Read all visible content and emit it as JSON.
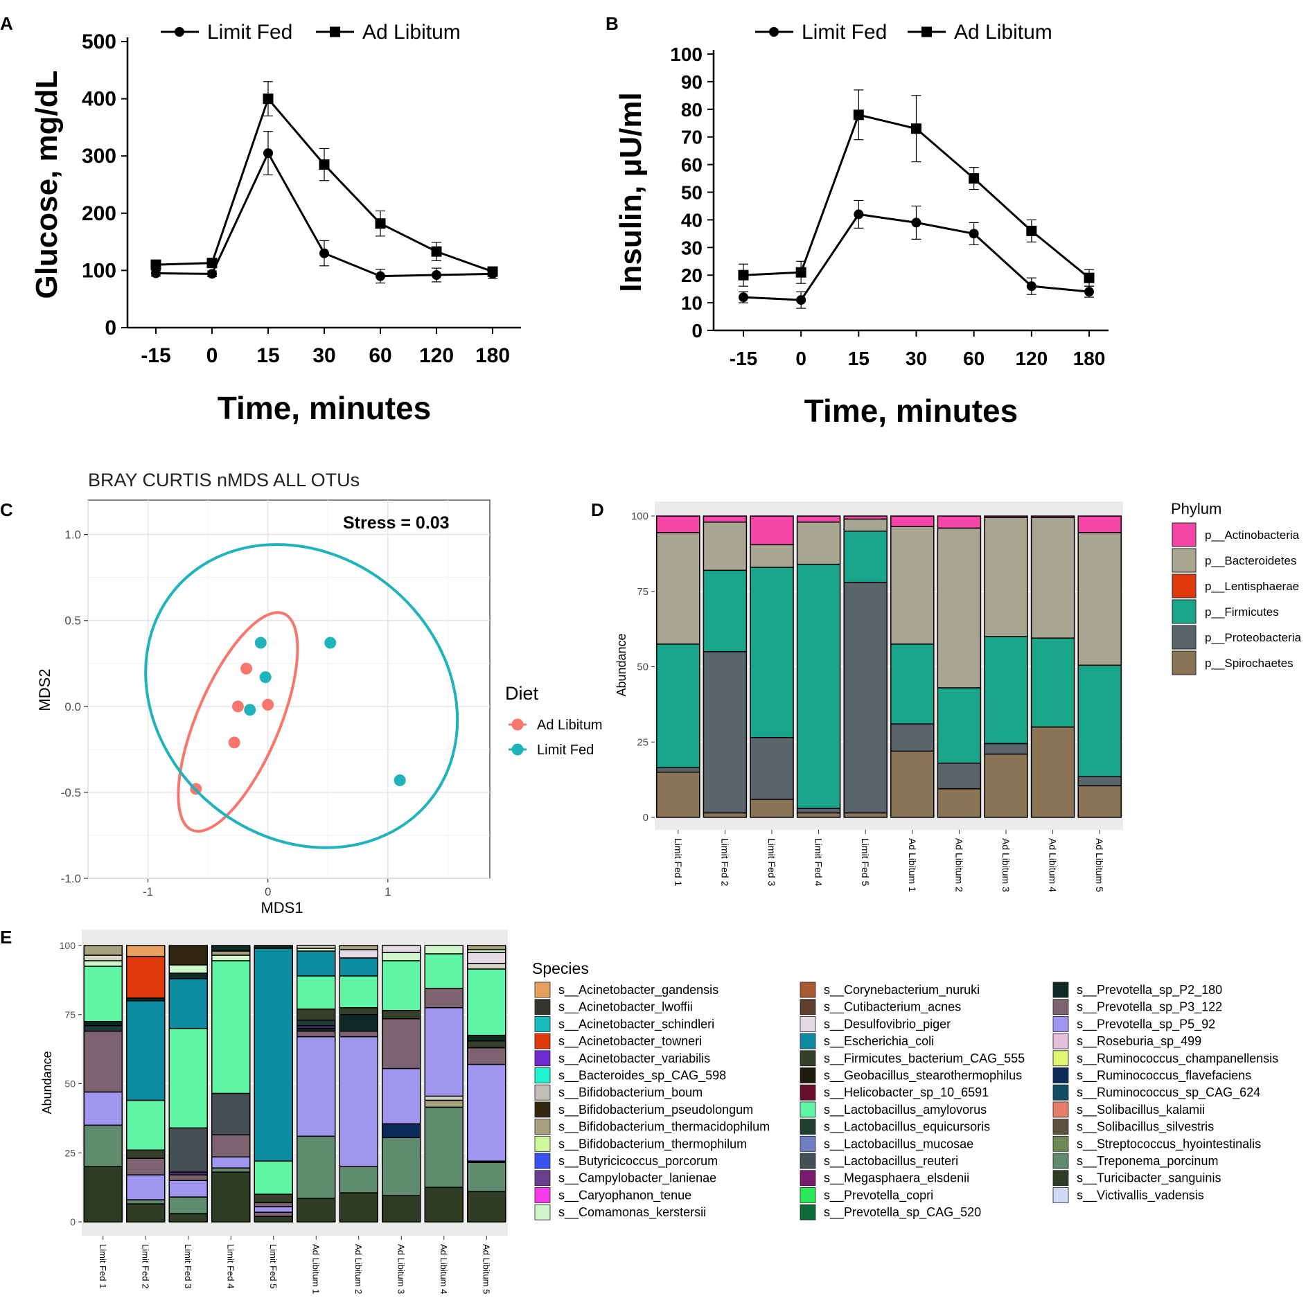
{
  "colors": {
    "ad_libitum": "#F8766D",
    "limit_fed": "#1FB3BB",
    "panel_bg": "#EBEBEB"
  },
  "chart_data": [
    {
      "panel": "A",
      "type": "line",
      "categories": [
        "-15",
        "0",
        "15",
        "30",
        "60",
        "120",
        "180"
      ],
      "series": [
        {
          "name": "Limit Fed",
          "marker": "circle",
          "values": [
            95,
            94,
            305,
            130,
            90,
            92,
            94
          ],
          "errors": [
            5,
            5,
            38,
            22,
            12,
            12,
            8
          ]
        },
        {
          "name": "Ad Libitum",
          "marker": "square",
          "values": [
            110,
            113,
            400,
            285,
            182,
            133,
            98
          ],
          "errors": [
            6,
            6,
            30,
            28,
            22,
            16,
            6
          ]
        }
      ],
      "xlabel": "Time, minutes",
      "ylabel": "Glucose, mg/dL",
      "ylim": [
        0,
        500
      ],
      "yticks": [
        "0",
        "100",
        "200",
        "300",
        "400",
        "500"
      ]
    },
    {
      "panel": "B",
      "type": "line",
      "categories": [
        "-15",
        "0",
        "15",
        "30",
        "60",
        "120",
        "180"
      ],
      "series": [
        {
          "name": "Limit Fed",
          "marker": "circle",
          "values": [
            12,
            11,
            42,
            39,
            35,
            16,
            14
          ],
          "errors": [
            2,
            3,
            5,
            6,
            4,
            3,
            2
          ]
        },
        {
          "name": "Ad Libitum",
          "marker": "square",
          "values": [
            20,
            21,
            78,
            73,
            55,
            36,
            19
          ],
          "errors": [
            4,
            4,
            9,
            12,
            4,
            4,
            3
          ]
        }
      ],
      "xlabel": "Time, minutes",
      "ylabel": "Insulin, μU/ml",
      "ylim": [
        0,
        100
      ],
      "yticks": [
        "0",
        "10",
        "20",
        "30",
        "40",
        "50",
        "60",
        "70",
        "80",
        "90",
        "100"
      ]
    },
    {
      "panel": "C",
      "type": "scatter",
      "title": "BRAY CURTIS nMDS ALL OTUs",
      "annotation": "Stress = 0.03",
      "xlabel": "MDS1",
      "ylabel": "MDS2",
      "xlim": [
        -1.5,
        1.85
      ],
      "ylim": [
        -1.0,
        1.2
      ],
      "xticks": [
        "-1",
        "0",
        "1"
      ],
      "yticks": [
        "-1.0",
        "-0.5",
        "0.0",
        "0.5",
        "1.0"
      ],
      "legend_title": "Diet",
      "series": [
        {
          "name": "Ad Libitum",
          "points": [
            [
              -0.18,
              0.22
            ],
            [
              -0.25,
              0.0
            ],
            [
              0.0,
              0.01
            ],
            [
              -0.28,
              -0.21
            ],
            [
              -0.6,
              -0.48
            ]
          ],
          "ellipse": {
            "center": [
              -0.25,
              -0.09
            ],
            "rx": 0.98,
            "ry": 0.24,
            "angle_deg": 67
          }
        },
        {
          "name": "Limit Fed",
          "points": [
            [
              -0.06,
              0.37
            ],
            [
              0.52,
              0.37
            ],
            [
              -0.02,
              0.17
            ],
            [
              -0.15,
              -0.02
            ],
            [
              1.1,
              -0.43
            ]
          ],
          "ellipse": {
            "center": [
              0.28,
              0.06
            ],
            "rx": 1.38,
            "ry": 0.82,
            "angle_deg": -40
          }
        }
      ]
    },
    {
      "panel": "D",
      "type": "bar",
      "stacked": true,
      "ylabel": "Abundance",
      "ylim": [
        0,
        100
      ],
      "yticks": [
        "0",
        "25",
        "50",
        "75",
        "100"
      ],
      "legend_title": "Phylum",
      "categories": [
        "Limit Fed 1",
        "Limit Fed 2",
        "Limit Fed 3",
        "Limit Fed 4",
        "Limit Fed 5",
        "Ad Libitum 1",
        "Ad Libitum 2",
        "Ad Libitum 3",
        "Ad Libitum 4",
        "Ad Libitum 5"
      ],
      "series": [
        {
          "name": "p__Spirochaetes",
          "color": "#8B7355",
          "values": [
            15,
            1.5,
            6,
            1.5,
            1.5,
            22,
            9.5,
            21,
            30,
            10.5
          ]
        },
        {
          "name": "p__Proteobacteria",
          "color": "#5A646B",
          "values": [
            1.5,
            53.5,
            20.5,
            1.5,
            76.5,
            9,
            8.5,
            3.5,
            0,
            3
          ]
        },
        {
          "name": "p__Firmicutes",
          "color": "#19A58A",
          "values": [
            41,
            27,
            56.5,
            81,
            17,
            26.5,
            25,
            35.5,
            29.5,
            37
          ]
        },
        {
          "name": "p__Lentisphaerae",
          "color": "#E03A0C",
          "values": [
            0,
            0,
            0,
            0,
            0,
            0,
            0,
            0,
            0,
            0
          ]
        },
        {
          "name": "p__Bacteroidetes",
          "color": "#A8A590",
          "values": [
            37,
            16,
            7.5,
            14,
            4,
            39,
            53,
            39.5,
            40,
            44
          ]
        },
        {
          "name": "p__Actinobacteria",
          "color": "#F545A6",
          "values": [
            5.5,
            2,
            9.5,
            2,
            1,
            3.5,
            4,
            0.5,
            0.5,
            5.5
          ]
        }
      ]
    },
    {
      "panel": "E",
      "type": "bar",
      "stacked": true,
      "ylabel": "Abundance",
      "ylim": [
        0,
        100
      ],
      "yticks": [
        "0",
        "25",
        "50",
        "75",
        "100"
      ],
      "legend_title": "Species",
      "categories": [
        "Limit Fed 1",
        "Limit Fed 2",
        "Limit Fed 3",
        "Limit Fed 4",
        "Limit Fed 5",
        "Ad Libitum 1",
        "Ad Libitum 2",
        "Ad Libitum 3",
        "Ad Libitum 4",
        "Ad Libitum 5"
      ],
      "stacks": [
        [
          [
            "#2F3D24",
            20
          ],
          [
            "#5F8C6F",
            15
          ],
          [
            "#A196EF",
            12
          ],
          [
            "#7D6270",
            22
          ],
          [
            "#223A3A",
            2
          ],
          [
            "#0F2A24",
            1.5
          ],
          [
            "#5EF5A4",
            20
          ],
          [
            "#CFF5CB",
            2
          ],
          [
            "#D4D4C4",
            2
          ],
          [
            "#A6A07C",
            3.5
          ]
        ],
        [
          [
            "#2F3D24",
            6.5
          ],
          [
            "#5F8C6F",
            1.5
          ],
          [
            "#A196EF",
            9
          ],
          [
            "#7D6270",
            6
          ],
          [
            "#35402A",
            3
          ],
          [
            "#5EF5A4",
            18
          ],
          [
            "#0D8BA1",
            36
          ],
          [
            "#0F2A24",
            1
          ],
          [
            "#E03A0C",
            15
          ],
          [
            "#E8A05E",
            4
          ]
        ],
        [
          [
            "#2F3D24",
            3
          ],
          [
            "#5F8C6F",
            6
          ],
          [
            "#A196EF",
            6
          ],
          [
            "#7D6270",
            2
          ],
          [
            "#4B2E6E",
            1
          ],
          [
            "#445055",
            16
          ],
          [
            "#5EF5A4",
            36
          ],
          [
            "#0D8BA1",
            18
          ],
          [
            "#0F2A24",
            2
          ],
          [
            "#CFF5CB",
            3
          ],
          [
            "#332510",
            7
          ]
        ],
        [
          [
            "#2F3D24",
            18
          ],
          [
            "#5F8C6F",
            1.5
          ],
          [
            "#A196EF",
            4
          ],
          [
            "#7D6270",
            8
          ],
          [
            "#445055",
            15
          ],
          [
            "#5EF5A4",
            48
          ],
          [
            "#CFF5CB",
            2
          ],
          [
            "#A6A07C",
            1.5
          ],
          [
            "#0F2A24",
            2
          ]
        ],
        [
          [
            "#2F3D24",
            2
          ],
          [
            "#7D6270",
            1.5
          ],
          [
            "#A196EF",
            2
          ],
          [
            "#7D6270",
            1.5
          ],
          [
            "#35402A",
            3
          ],
          [
            "#5EF5A4",
            12
          ],
          [
            "#0D8BA1",
            77
          ],
          [
            "#0F2A24",
            1
          ]
        ],
        [
          [
            "#2F3D24",
            8.5
          ],
          [
            "#5F8C6F",
            22.5
          ],
          [
            "#A196EF",
            36
          ],
          [
            "#7D6270",
            2
          ],
          [
            "#0F2A24",
            1
          ],
          [
            "#4B2E6E",
            1
          ],
          [
            "#223A3A",
            2
          ],
          [
            "#35402A",
            4
          ],
          [
            "#5EF5A4",
            12
          ],
          [
            "#0D8BA1",
            9
          ],
          [
            "#CFF5CB",
            1
          ],
          [
            "#D4D4C4",
            1
          ]
        ],
        [
          [
            "#2F3D24",
            10.5
          ],
          [
            "#5F8C6F",
            9.5
          ],
          [
            "#A196EF",
            47
          ],
          [
            "#7D6270",
            2
          ],
          [
            "#0F2A24",
            6
          ],
          [
            "#35402A",
            2.5
          ],
          [
            "#5EF5A4",
            11.5
          ],
          [
            "#0D8BA1",
            6.5
          ],
          [
            "#E4DAE4",
            3
          ],
          [
            "#A6A07C",
            1.5
          ]
        ],
        [
          [
            "#2F3D24",
            9.5
          ],
          [
            "#5F8C6F",
            21
          ],
          [
            "#0A2B5C",
            5
          ],
          [
            "#A196EF",
            20
          ],
          [
            "#7D6270",
            18
          ],
          [
            "#35402A",
            3
          ],
          [
            "#5EF5A4",
            18
          ],
          [
            "#CFF5CB",
            3
          ],
          [
            "#E4DAE4",
            2.5
          ]
        ],
        [
          [
            "#2F3D24",
            12.5
          ],
          [
            "#5F8C6F",
            29
          ],
          [
            "#A6A07C",
            2.5
          ],
          [
            "#D4D4C4",
            1.5
          ],
          [
            "#A196EF",
            32
          ],
          [
            "#7D6270",
            7
          ],
          [
            "#5EF5A4",
            12.5
          ],
          [
            "#CFF5CB",
            3
          ]
        ],
        [
          [
            "#2F3D24",
            11
          ],
          [
            "#5F8C6F",
            10.5
          ],
          [
            "#0F2A24",
            0.5
          ],
          [
            "#A196EF",
            35
          ],
          [
            "#7D6270",
            6
          ],
          [
            "#35402A",
            2.5
          ],
          [
            "#0F2A24",
            2
          ],
          [
            "#5EF5A4",
            24
          ],
          [
            "#D4D4C4",
            2
          ],
          [
            "#E4DAE4",
            4
          ],
          [
            "#CFF5CB",
            1
          ],
          [
            "#A6A07C",
            1.5
          ]
        ]
      ],
      "legend": [
        {
          "name": "s__Acinetobacter_gandensis",
          "color": "#E8A05E"
        },
        {
          "name": "s__Acinetobacter_lwoffii",
          "color": "#35352F"
        },
        {
          "name": "s__Acinetobacter_schindleri",
          "color": "#16BEC0"
        },
        {
          "name": "s__Acinetobacter_towneri",
          "color": "#E03A0C"
        },
        {
          "name": "s__Acinetobacter_variabilis",
          "color": "#6F2BD3"
        },
        {
          "name": "s__Bacteroides_sp_CAG_598",
          "color": "#1EF2CF"
        },
        {
          "name": "s__Bifidobacterium_boum",
          "color": "#C2BFB7"
        },
        {
          "name": "s__Bifidobacterium_pseudolongum",
          "color": "#332510"
        },
        {
          "name": "s__Bifidobacterium_thermacidophilum",
          "color": "#A6A07C"
        },
        {
          "name": "s__Bifidobacterium_thermophilum",
          "color": "#CFF79D"
        },
        {
          "name": "s__Butyricicoccus_porcorum",
          "color": "#3A52F2"
        },
        {
          "name": "s__Campylobacter_lanienae",
          "color": "#6A3F8E"
        },
        {
          "name": "s__Caryophanon_tenue",
          "color": "#F53AE8"
        },
        {
          "name": "s__Comamonas_kerstersii",
          "color": "#CFF5CB"
        },
        {
          "name": "s__Corynebacterium_nuruki",
          "color": "#A85A34"
        },
        {
          "name": "s__Cutibacterium_acnes",
          "color": "#5E3F2C"
        },
        {
          "name": "s__Desulfovibrio_piger",
          "color": "#E4DAE4"
        },
        {
          "name": "s__Escherichia_coli",
          "color": "#0D8BA1"
        },
        {
          "name": "s__Firmicutes_bacterium_CAG_555",
          "color": "#35402A"
        },
        {
          "name": "s__Geobacillus_stearothermophilus",
          "color": "#1E1A0C"
        },
        {
          "name": "s__Helicobacter_sp_10_6591",
          "color": "#6A0E2E"
        },
        {
          "name": "s__Lactobacillus_amylovorus",
          "color": "#5EF5A4"
        },
        {
          "name": "s__Lactobacillus_equicursoris",
          "color": "#1F3F30"
        },
        {
          "name": "s__Lactobacillus_mucosae",
          "color": "#6E7FC4"
        },
        {
          "name": "s__Lactobacillus_reuteri",
          "color": "#445055"
        },
        {
          "name": "s__Megasphaera_elsdenii",
          "color": "#7A1C6E"
        },
        {
          "name": "s__Prevotella_copri",
          "color": "#2BE858"
        },
        {
          "name": "s__Prevotella_sp_CAG_520",
          "color": "#0E6B3A"
        },
        {
          "name": "s__Prevotella_sp_P2_180",
          "color": "#0F2A24"
        },
        {
          "name": "s__Prevotella_sp_P3_122",
          "color": "#7D6270"
        },
        {
          "name": "s__Prevotella_sp_P5_92",
          "color": "#A196EF"
        },
        {
          "name": "s__Roseburia_sp_499",
          "color": "#E6BFDD"
        },
        {
          "name": "s__Ruminococcus_champanellensis",
          "color": "#E1F573"
        },
        {
          "name": "s__Ruminococcus_flavefaciens",
          "color": "#0A2B5C"
        },
        {
          "name": "s__Ruminococcus_sp_CAG_624",
          "color": "#114E63"
        },
        {
          "name": "s__Solibacillus_kalamii",
          "color": "#E57E6B"
        },
        {
          "name": "s__Solibacillus_silvestris",
          "color": "#5C503E"
        },
        {
          "name": "s__Streptococcus_hyointestinalis",
          "color": "#6E8A55"
        },
        {
          "name": "s__Treponema_porcinum",
          "color": "#5F8C6F"
        },
        {
          "name": "s__Turicibacter_sanguinis",
          "color": "#2F3D24"
        },
        {
          "name": "s__Victivallis_vadensis",
          "color": "#CED8F7"
        }
      ]
    }
  ],
  "panel_labels": [
    "A",
    "B",
    "C",
    "D",
    "E"
  ]
}
